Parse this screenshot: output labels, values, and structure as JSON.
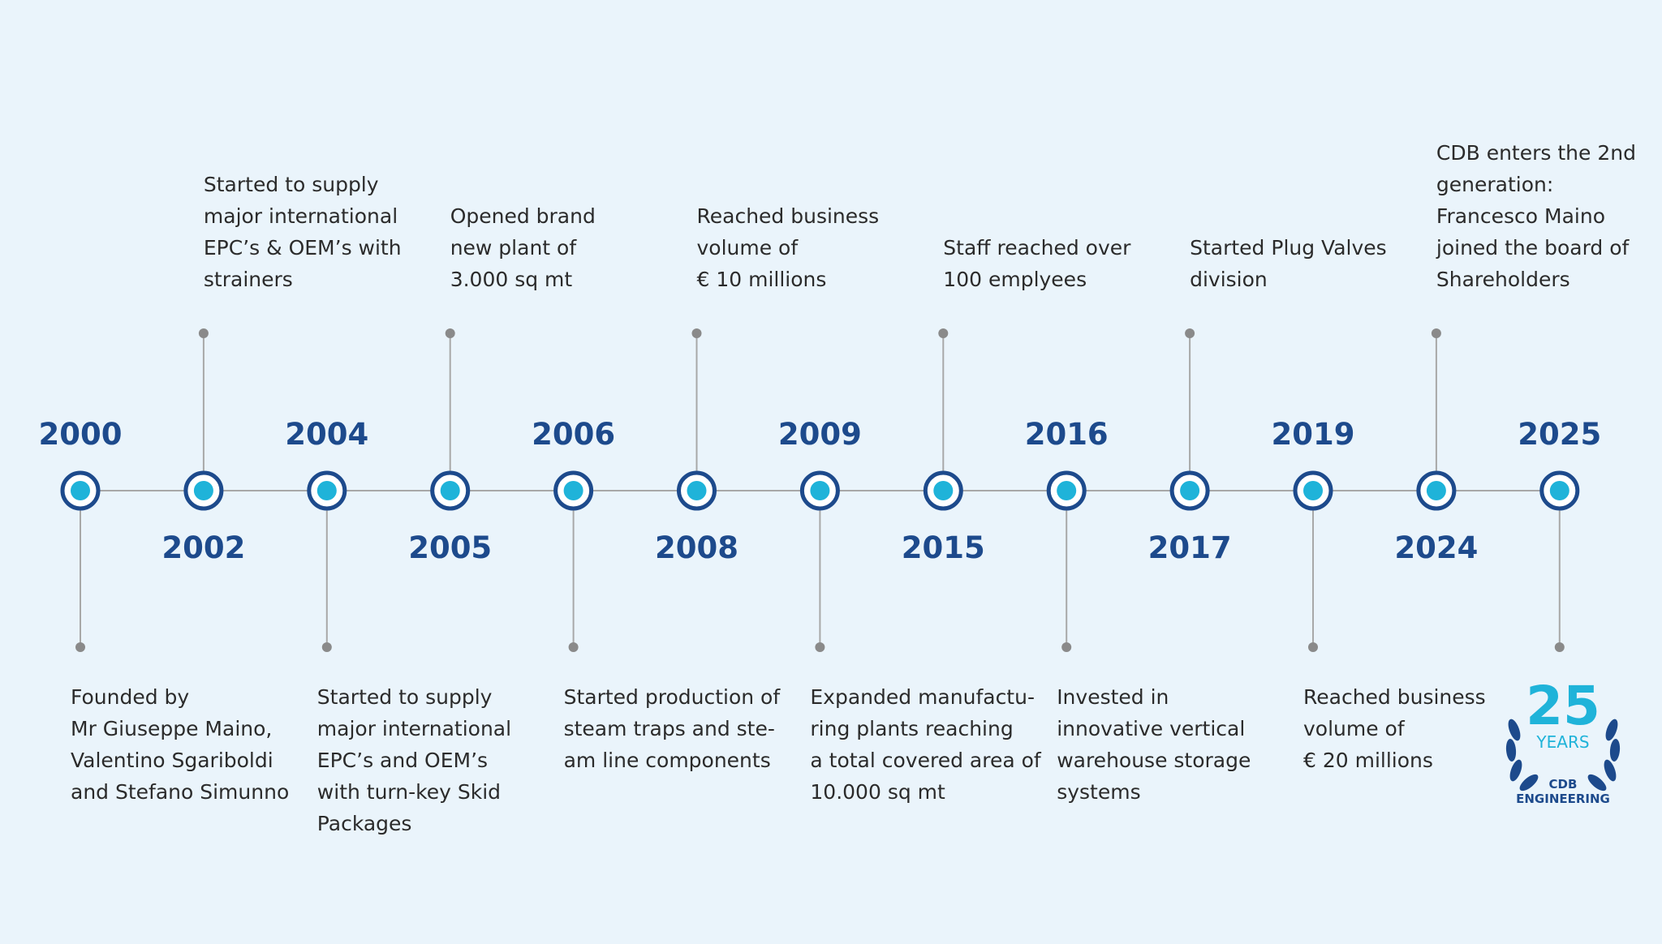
{
  "events": [
    {
      "year": "2000",
      "lines": [
        "Founded by",
        "Mr Giuseppe Maino,",
        "Valentino Sgariboldi",
        "and Stefano Simunno"
      ]
    },
    {
      "year": "2002",
      "lines": [
        "Started to supply",
        "major international",
        "EPC’s & OEM’s with",
        "strainers"
      ]
    },
    {
      "year": "2004",
      "lines": [
        "Started to supply",
        "major international",
        "EPC’s and OEM’s",
        "with turn-key Skid",
        "Packages"
      ]
    },
    {
      "year": "2005",
      "lines": [
        "Opened brand",
        "new plant of",
        "3.000 sq mt"
      ]
    },
    {
      "year": "2006",
      "lines": [
        "Started production of",
        "steam traps and ste-",
        "am line components"
      ]
    },
    {
      "year": "2008",
      "lines": [
        "Reached business",
        "volume of",
        "€ 10 millions"
      ]
    },
    {
      "year": "2009",
      "lines": [
        "Expanded manufactu-",
        "ring plants reaching",
        "a total covered area of",
        "10.000 sq mt"
      ]
    },
    {
      "year": "2015",
      "lines": [
        "Staff reached over",
        "100 emplyees"
      ]
    },
    {
      "year": "2016",
      "lines": [
        "Invested in",
        "innovative vertical",
        "warehouse storage",
        "systems"
      ]
    },
    {
      "year": "2017",
      "lines": [
        "Started Plug Valves",
        "division"
      ]
    },
    {
      "year": "2019",
      "lines": [
        "Reached business",
        "volume of",
        "€ 20 millions"
      ]
    },
    {
      "year": "2024",
      "lines": [
        "CDB enters the 2nd",
        "generation:",
        "Francesco Maino",
        "joined the board of",
        "Shareholders"
      ]
    },
    {
      "year": "2025",
      "lines": []
    }
  ],
  "logo": {
    "number": "25",
    "word": "YEARS",
    "brand": "CDB",
    "subtitle": "ENGINEERING"
  }
}
